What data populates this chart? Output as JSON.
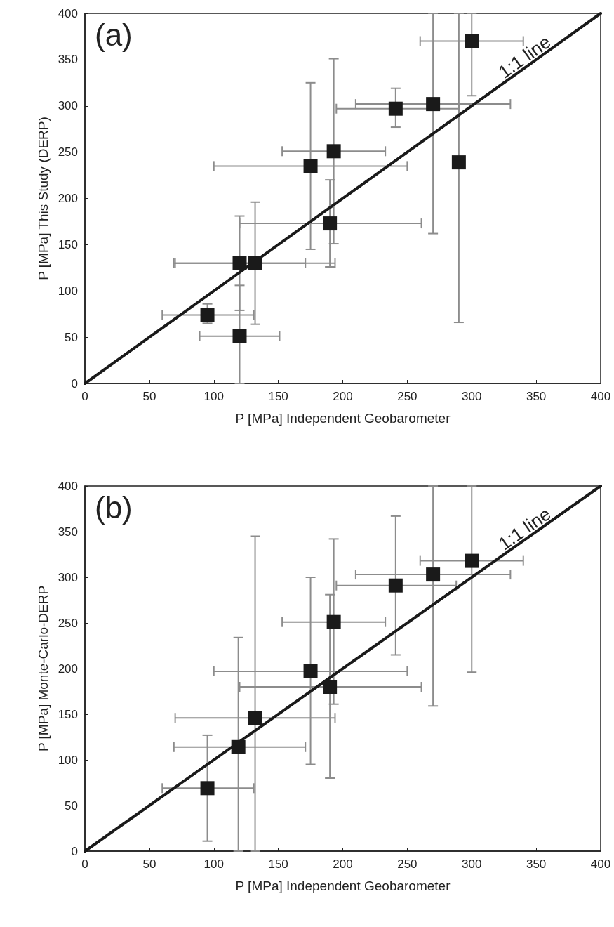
{
  "chart_data": [
    {
      "type": "scatter",
      "xlabel": "P [MPa] Independent Geobarometer",
      "ylabel": "P [MPa] This Study (DERP)",
      "xlim": [
        0,
        400
      ],
      "ylim": [
        0,
        400
      ],
      "xticks": [
        0,
        50,
        100,
        150,
        200,
        250,
        300,
        350,
        400
      ],
      "yticks": [
        0,
        50,
        100,
        150,
        200,
        250,
        300,
        350,
        400
      ],
      "grid": false,
      "annotations": [
        "(a)",
        {
          "text": "1:1 line",
          "x": 345,
          "y": 345
        }
      ],
      "series": [
        {
          "color": "#1a1a1a",
          "marker": "square",
          "x": [
            95,
            120,
            120,
            132,
            175,
            193,
            190,
            241,
            270,
            290,
            300
          ],
          "values": [
            74,
            51,
            130,
            130,
            235,
            251,
            173,
            297,
            302,
            239,
            370
          ],
          "xerrors": [
            [
              60,
              131
            ],
            [
              89,
              151
            ],
            [
              69,
              171
            ],
            [
              70,
              194
            ],
            [
              100,
              250
            ],
            [
              153,
              233
            ],
            [
              120,
              261
            ],
            [
              195,
              290
            ],
            [
              210,
              330
            ],
            null,
            [
              260,
              340
            ]
          ],
          "errors": [
            [
              65,
              86
            ],
            [
              0,
              106
            ],
            [
              79,
              181
            ],
            [
              64,
              196
            ],
            [
              145,
              325
            ],
            [
              151,
              351
            ],
            [
              126,
              220
            ],
            [
              277,
              319
            ],
            [
              162,
              400
            ],
            [
              66,
              400
            ],
            [
              311,
              400
            ]
          ]
        },
        {
          "type": "line",
          "color": "#1a1a1a",
          "marker": "none",
          "line_style": "solid",
          "x": [
            0,
            400
          ],
          "values": [
            0,
            400
          ]
        }
      ]
    },
    {
      "type": "scatter",
      "xlabel": "P [MPa] Independent Geobarometer",
      "ylabel": "P [MPa] Monte-Carlo-DERP",
      "xlim": [
        0,
        400
      ],
      "ylim": [
        0,
        400
      ],
      "xticks": [
        0,
        50,
        100,
        150,
        200,
        250,
        300,
        350,
        400
      ],
      "yticks": [
        0,
        50,
        100,
        150,
        200,
        250,
        300,
        350,
        400
      ],
      "grid": false,
      "annotations": [
        "(b)",
        {
          "text": "1:1 line",
          "x": 345,
          "y": 345
        }
      ],
      "series": [
        {
          "color": "#1a1a1a",
          "marker": "square",
          "x": [
            95,
            119,
            132,
            175,
            190,
            193,
            241,
            270,
            300
          ],
          "values": [
            69,
            114,
            146,
            197,
            180,
            251,
            291,
            303,
            318
          ],
          "xerrors": [
            [
              60,
              131
            ],
            [
              69,
              171
            ],
            [
              70,
              194
            ],
            [
              100,
              250
            ],
            [
              120,
              261
            ],
            [
              153,
              233
            ],
            [
              195,
              288
            ],
            [
              210,
              330
            ],
            [
              260,
              340
            ]
          ],
          "errors": [
            [
              11,
              127
            ],
            [
              0,
              234
            ],
            [
              0,
              345
            ],
            [
              95,
              300
            ],
            [
              80,
              281
            ],
            [
              161,
              342
            ],
            [
              215,
              367
            ],
            [
              159,
              400
            ],
            [
              196,
              400
            ]
          ]
        },
        {
          "type": "line",
          "color": "#1a1a1a",
          "marker": "none",
          "line_style": "solid",
          "x": [
            0,
            400
          ],
          "values": [
            0,
            400
          ]
        }
      ]
    }
  ]
}
